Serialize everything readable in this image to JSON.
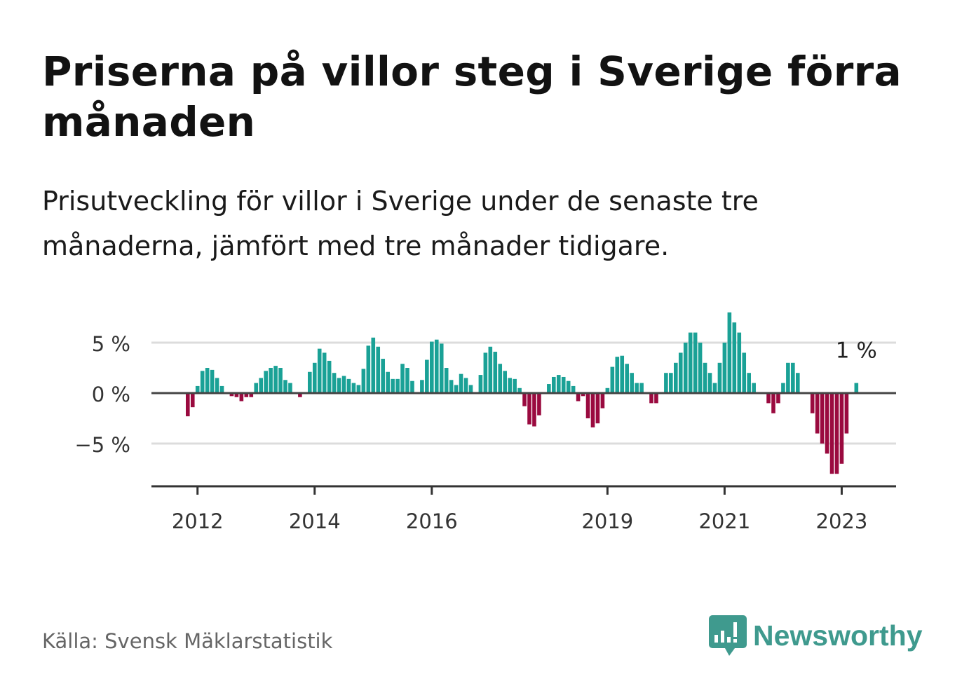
{
  "title": "Priserna på villor steg i Sverige förra månaden",
  "subtitle": "Prisutveckling för villor i Sverige under de senaste tre månaderna, jämfört med tre månader tidigare.",
  "source": "Källa: Svensk Mäklarstatistik",
  "brand": "Newsworthy",
  "colors": {
    "positive": "#1aa196",
    "negative": "#9a0a3f",
    "brand": "#3f9a8e"
  },
  "chart_data": {
    "type": "bar",
    "title": "",
    "xlabel": "",
    "ylabel": "",
    "ylim": [
      -9.5,
      9.5
    ],
    "y_ticks": [
      {
        "value": 5,
        "label": "5 %"
      },
      {
        "value": 0,
        "label": "0 %"
      },
      {
        "value": -5,
        "label": "−5 %"
      }
    ],
    "x_ticks": [
      {
        "value": 2012,
        "label": "2012"
      },
      {
        "value": 2014,
        "label": "2014"
      },
      {
        "value": 2016,
        "label": "2016"
      },
      {
        "value": 2019,
        "label": "2019"
      },
      {
        "value": 2021,
        "label": "2021"
      },
      {
        "value": 2023,
        "label": "2023"
      }
    ],
    "start": "2011-11",
    "end": "2023-04",
    "annotation": {
      "label": "1 %",
      "index": 137
    },
    "values": [
      -2.3,
      -1.4,
      0.7,
      2.2,
      2.5,
      2.3,
      1.5,
      0.7,
      0.0,
      -0.3,
      -0.4,
      -0.8,
      -0.4,
      -0.4,
      1.0,
      1.5,
      2.2,
      2.5,
      2.7,
      2.5,
      1.3,
      1.0,
      0.1,
      -0.4,
      0.1,
      2.1,
      3.0,
      4.4,
      4.0,
      3.2,
      2.0,
      1.5,
      1.7,
      1.4,
      1.0,
      0.8,
      2.4,
      4.7,
      5.5,
      4.6,
      3.4,
      2.1,
      1.4,
      1.4,
      2.9,
      2.5,
      1.2,
      0.0,
      1.3,
      3.3,
      5.1,
      5.3,
      4.9,
      2.5,
      1.3,
      0.8,
      1.9,
      1.5,
      0.8,
      0.0,
      1.8,
      4.0,
      4.6,
      4.1,
      2.9,
      2.2,
      1.5,
      1.4,
      0.5,
      -1.3,
      -3.1,
      -3.3,
      -2.2,
      0.0,
      0.9,
      1.6,
      1.8,
      1.6,
      1.2,
      0.7,
      -0.8,
      -0.3,
      -2.5,
      -3.4,
      -3.0,
      -1.5,
      0.5,
      2.6,
      3.6,
      3.7,
      2.9,
      2.0,
      1.0,
      1.0,
      0.0,
      -1.0,
      -1.0,
      0.0,
      2.0,
      2.0,
      3.0,
      4.0,
      5.0,
      6.0,
      6.0,
      5.0,
      3.0,
      2.0,
      1.0,
      3.0,
      5.0,
      8.0,
      7.0,
      6.0,
      4.0,
      2.0,
      1.0,
      0.0,
      0.0,
      -1.0,
      -2.0,
      -1.0,
      1.0,
      3.0,
      3.0,
      2.0,
      0.0,
      0.0,
      -2.0,
      -4.0,
      -5.0,
      -6.0,
      -8.0,
      -8.0,
      -7.0,
      -4.0,
      0.0,
      1.0
    ]
  }
}
